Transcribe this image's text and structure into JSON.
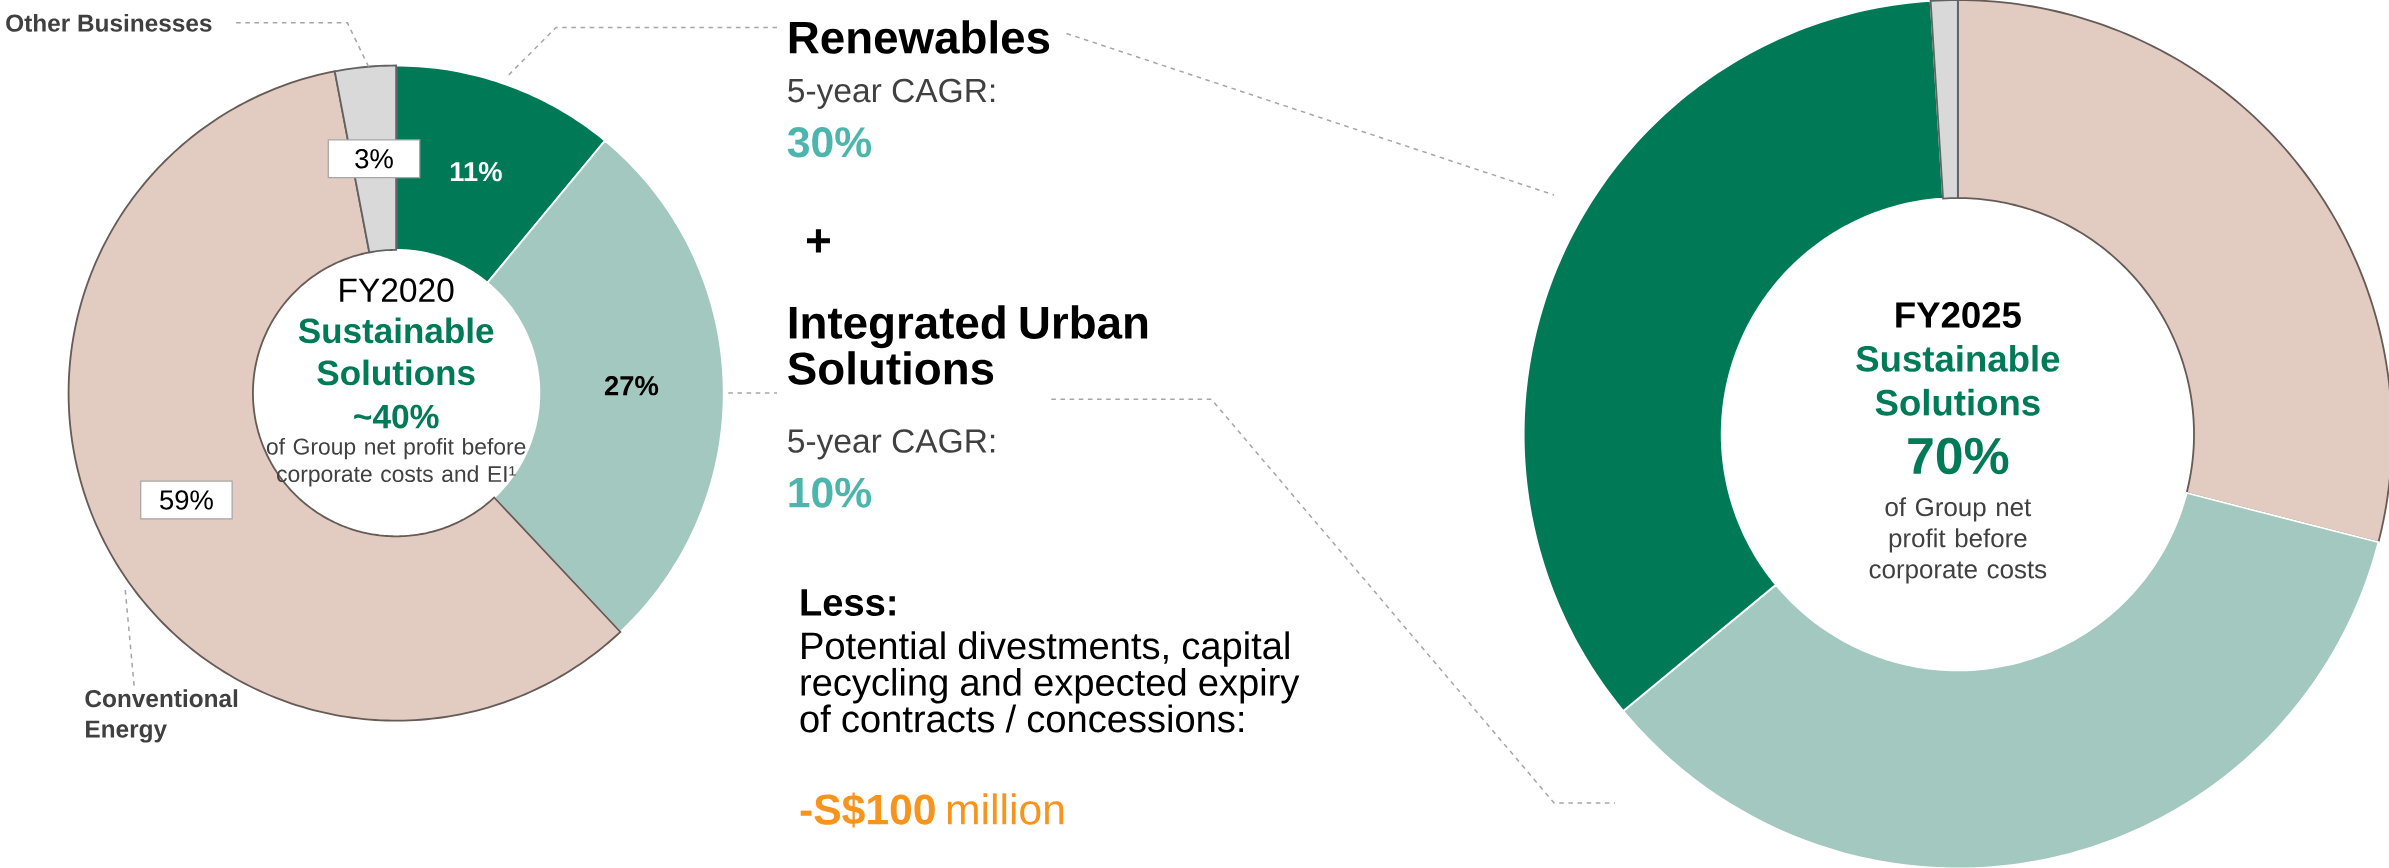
{
  "chart_data": [
    {
      "type": "donut",
      "title": "FY2020",
      "categories": [
        null,
        null,
        "Conventional Energy",
        "Other Businesses"
      ],
      "values": [
        11,
        27,
        59,
        3
      ],
      "colors": [
        "#007a56",
        "#a2c8bf",
        "#e2cbc0",
        "#d9d9d9"
      ],
      "value_labels": [
        "11%",
        "27%",
        "59%",
        "3%"
      ],
      "annotations": [
        "Sustainable Solutions",
        "~40%",
        "of Group net profit before corporate costs and EI¹"
      ]
    },
    {
      "type": "other",
      "annotations": [
        "Renewables",
        "5-year CAGR:",
        "30%",
        "+",
        "Integrated Urban Solutions",
        "5-year CAGR:",
        "10%",
        "Less:",
        "Potential divestments, capital recycling and expected expiry of contracts / concessions:",
        "-S$100",
        "million"
      ]
    },
    {
      "type": "donut",
      "title": "FY2025",
      "categories": [
        null,
        null,
        null,
        null
      ],
      "values": [
        29,
        35,
        35,
        1
      ],
      "colors": [
        "#e2cbc0",
        "#a2c8bf",
        "#007a56",
        "#d9d9d9"
      ],
      "annotations": [
        "Sustainable Solutions",
        "70%",
        "of Group net profit before corporate costs"
      ]
    }
  ]
}
